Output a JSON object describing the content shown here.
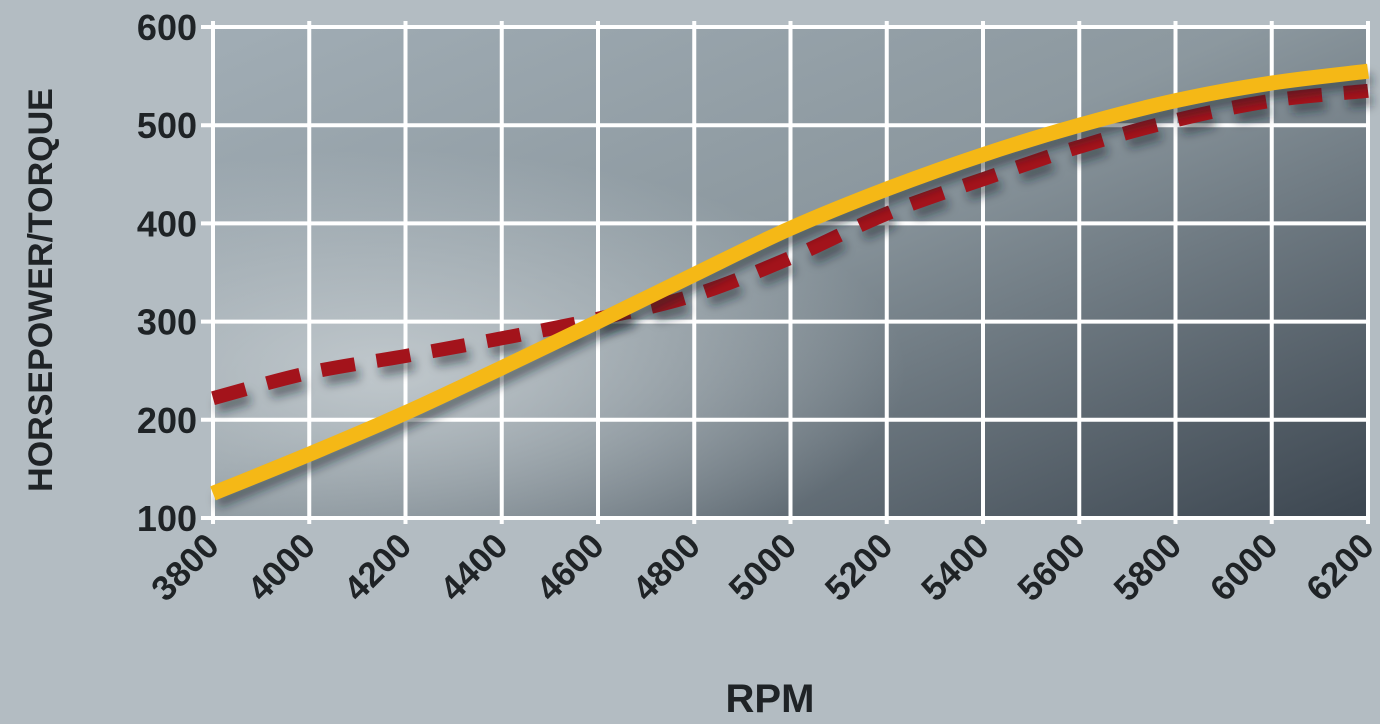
{
  "chart_data": {
    "type": "line",
    "title": "",
    "xlabel": "RPM",
    "ylabel": "HORSEPOWER/TORQUE",
    "x": [
      3800,
      4000,
      4200,
      4400,
      4600,
      4800,
      5000,
      5200,
      5400,
      5600,
      5800,
      6000,
      6200
    ],
    "xlim": [
      3800,
      6200
    ],
    "ylim": [
      100,
      600
    ],
    "x_ticks": [
      "3800",
      "4000",
      "4200",
      "4400",
      "4600",
      "4800",
      "5000",
      "5200",
      "5400",
      "5600",
      "5800",
      "6000",
      "6200"
    ],
    "y_ticks": [
      "100",
      "200",
      "300",
      "400",
      "500",
      "600"
    ],
    "grid": true,
    "legend": "none",
    "series": [
      {
        "color": "#f5b816",
        "style": "solid",
        "values": [
          125,
          165,
          207,
          253,
          300,
          348,
          395,
          435,
          470,
          500,
          525,
          543,
          555
        ]
      },
      {
        "color": "#a3131b",
        "style": "dashed",
        "values": [
          222,
          248,
          265,
          283,
          303,
          327,
          365,
          410,
          445,
          478,
          505,
          525,
          535
        ]
      }
    ]
  }
}
